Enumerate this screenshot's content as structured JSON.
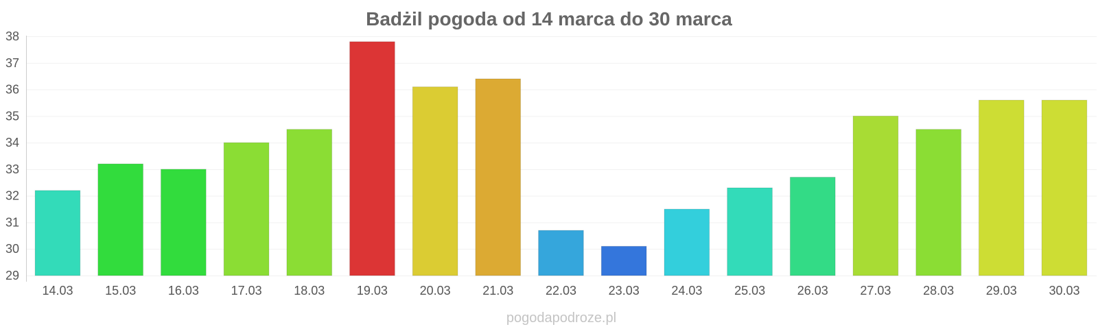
{
  "chart_data": {
    "type": "bar",
    "title": "Badżil pogoda od 14 marca do 30 marca",
    "xlabel": "",
    "ylabel": "",
    "categories": [
      "14.03",
      "15.03",
      "16.03",
      "17.03",
      "18.03",
      "19.03",
      "20.03",
      "21.03",
      "22.03",
      "23.03",
      "24.03",
      "25.03",
      "26.03",
      "27.03",
      "28.03",
      "29.03",
      "30.03"
    ],
    "values": [
      32.2,
      33.2,
      33.0,
      34.0,
      34.5,
      37.8,
      36.1,
      36.4,
      30.7,
      30.1,
      31.5,
      32.3,
      32.7,
      35.0,
      34.5,
      35.6,
      35.6
    ],
    "colors": [
      "#33dbb9",
      "#32dc3d",
      "#32dc3d",
      "#8bdd34",
      "#8bdd34",
      "#dc3535",
      "#dbcc33",
      "#dcaa33",
      "#35a6dc",
      "#3476dc",
      "#33cfdc",
      "#33dbb9",
      "#33db86",
      "#a8dc34",
      "#8bdd34",
      "#cddd34",
      "#cddd34"
    ],
    "yticks": [
      "29",
      "30",
      "31",
      "32",
      "33",
      "34",
      "35",
      "36",
      "37",
      "38"
    ],
    "ylim": [
      29,
      38
    ],
    "grid": true,
    "watermark": "pogodapodroze.pl"
  }
}
